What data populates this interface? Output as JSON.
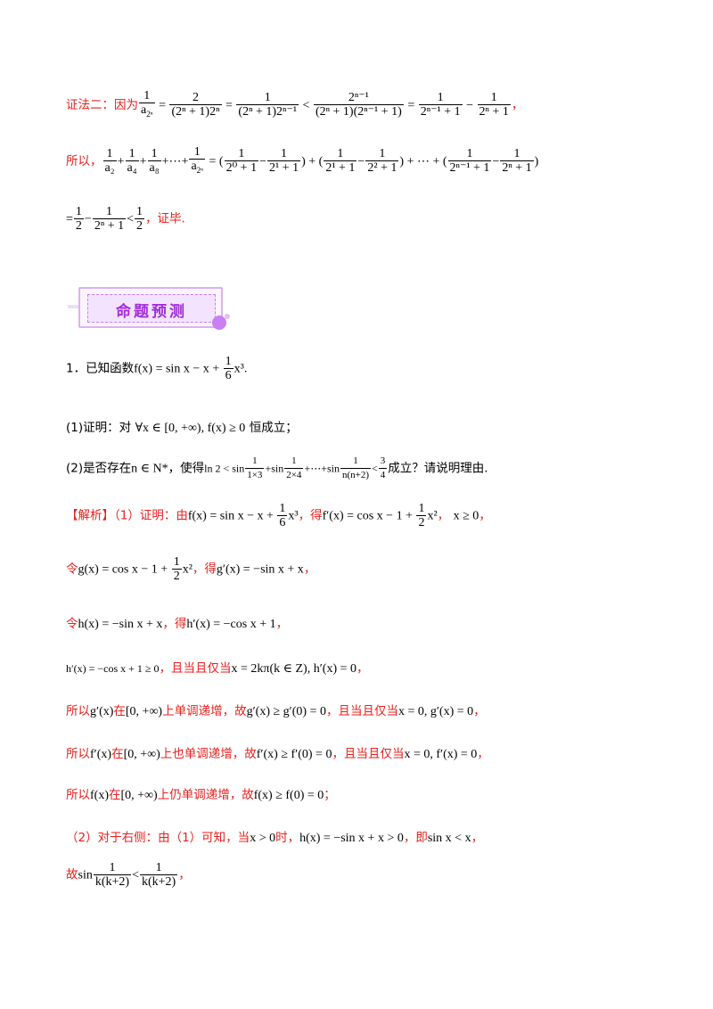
{
  "proof2": {
    "label": "证法二：因为",
    "end": "，"
  },
  "sum_line": {
    "label": "所以，",
    "dots": "+⋯+"
  },
  "result_line": {
    "end": "，证毕."
  },
  "banner": {
    "title": "命题预测"
  },
  "q1": {
    "intro": "1．已知函数",
    "func": "f(x) = sin x − x + ",
    "x3": "x³",
    "end": "."
  },
  "q1_1": {
    "label": "(1)证明：对",
    "cond": "∀x ∈ [0, +∞), f(x) ≥ 0",
    "end": "恒成立；"
  },
  "q1_2": {
    "label": "(2)是否存在",
    "cond": "n ∈ N*",
    "mid": "，使得",
    "ineq_start": "ln 2 < sin",
    "end": "成立？请说明理由."
  },
  "sol": {
    "tag": "【解析】",
    "l1_a": "（1）证明：由",
    "l1_b": "，得",
    "l1_c": "，",
    "l1_d": "x ≥ 0",
    "l1_e": "，",
    "l2_a": "令",
    "l2_b": "，得",
    "l2_c": "g′(x) = −sin x + x",
    "l2_d": "，",
    "l3_a": "令",
    "l3_b": "h(x) = −sin x + x",
    "l3_c": "，得",
    "l3_d": "h′(x) = −cos x + 1",
    "l3_e": "，",
    "l4_a": "h′(x) = −cos x + 1 ≥ 0",
    "l4_b": "，且当且仅当",
    "l4_c": "x = 2kπ(k ∈ Z), h′(x) = 0",
    "l4_d": "，",
    "l5_a": "所以",
    "l5_b": "g′(x)",
    "l5_c": "在",
    "l5_d": "[0, +∞)",
    "l5_e": "上单调递增，故",
    "l5_f": "g′(x) ≥ g′(0) = 0",
    "l5_g": "，且当且仅当",
    "l5_h": "x = 0, g′(x) = 0",
    "l5_i": "，",
    "l6_a": "所以",
    "l6_b": "f′(x)",
    "l6_c": "在",
    "l6_d": "[0, +∞)",
    "l6_e": "上也单调递增，故",
    "l6_f": "f′(x) ≥ f′(0) = 0",
    "l6_g": "，且当且仅当",
    "l6_h": "x = 0, f′(x) = 0",
    "l6_i": "，",
    "l7_a": "所以",
    "l7_b": "f(x)",
    "l7_c": "在",
    "l7_d": "[0, +∞)",
    "l7_e": "上仍单调递增，故",
    "l7_f": "f(x) ≥ f(0) = 0",
    "l7_g": "；",
    "l8_a": "（2）对于右侧：由（1）可知，当",
    "l8_b": "x > 0",
    "l8_c": "时，",
    "l8_d": "h(x) = −sin x + x > 0",
    "l8_e": "，即",
    "l8_f": "sin x < x",
    "l8_g": "，",
    "l9_a": "故",
    "l9_b": "sin",
    "l9_c": "<",
    "l9_d": "，"
  }
}
